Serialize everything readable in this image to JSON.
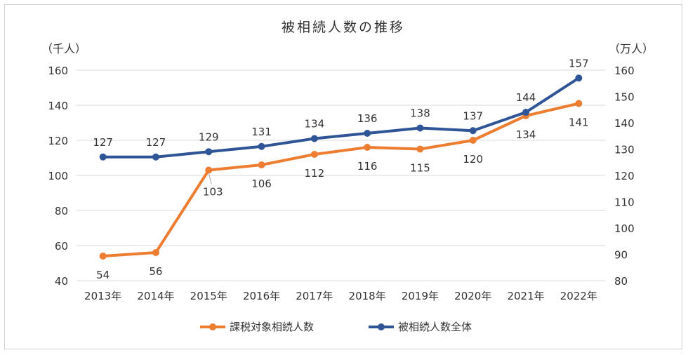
{
  "chart_data": {
    "type": "line",
    "title": "被相続人数の推移",
    "left_axis_unit": "（千人）",
    "right_axis_unit": "（万人）",
    "categories": [
      "2013年",
      "2014年",
      "2015年",
      "2016年",
      "2017年",
      "2018年",
      "2019年",
      "2020年",
      "2021年",
      "2022年"
    ],
    "left_axis": {
      "min": 40,
      "max": 160,
      "ticks": [
        40,
        60,
        80,
        100,
        120,
        140,
        160
      ]
    },
    "right_axis": {
      "min": 80,
      "max": 160,
      "ticks": [
        80,
        90,
        100,
        110,
        120,
        130,
        140,
        150,
        160
      ]
    },
    "grid": true,
    "legend_position": "bottom",
    "series": [
      {
        "name": "課税対象相続人数",
        "axis": "left",
        "color": "#ED7D31",
        "values": [
          54,
          56,
          103,
          106,
          112,
          116,
          115,
          120,
          134,
          141
        ],
        "label_position": "below"
      },
      {
        "name": "被相続人数全体",
        "axis": "right",
        "color": "#2F5597",
        "values": [
          127,
          127,
          129,
          131,
          134,
          136,
          138,
          137,
          144,
          157
        ],
        "label_position": "above"
      }
    ]
  }
}
